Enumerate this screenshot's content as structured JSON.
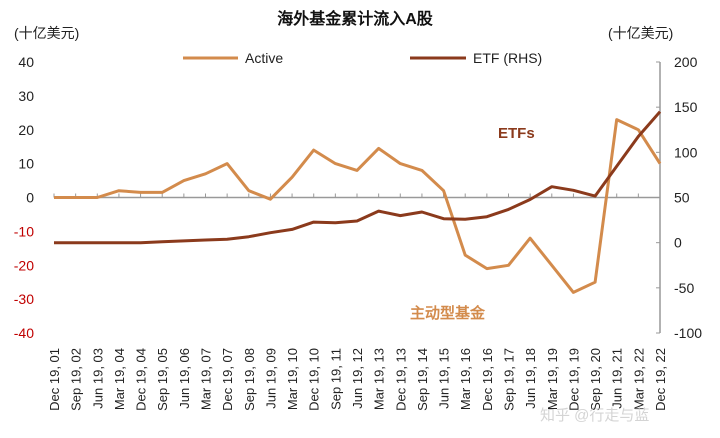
{
  "chart_data": {
    "type": "line",
    "title": "海外基金累计流入A股",
    "ylabel_left": "(十亿美元)",
    "ylabel_right": "(十亿美元)",
    "categories": [
      "Dec 19, 01",
      "Sep 19, 02",
      "Jun 19, 03",
      "Mar 19, 04",
      "Dec 19, 04",
      "Sep 19, 05",
      "Jun 19, 06",
      "Mar 19, 07",
      "Dec 19, 07",
      "Sep 19, 08",
      "Jun 19, 09",
      "Mar 19, 10",
      "Dec 19, 10",
      "Sep 19, 11",
      "Jun 19, 12",
      "Mar 19, 13",
      "Dec 19, 13",
      "Sep 19, 14",
      "Jun 19, 15",
      "Mar 19, 16",
      "Dec 19, 16",
      "Sep 19, 17",
      "Jun 19, 18",
      "Mar 19, 19",
      "Dec 19, 19",
      "Sep 19, 20",
      "Jun 19, 21",
      "Mar 19, 22",
      "Dec 19, 22"
    ],
    "series": [
      {
        "name": "Active",
        "axis": "left",
        "color": "#D38B4C",
        "values": [
          0,
          0,
          0,
          2,
          1.5,
          1.5,
          5,
          7,
          10,
          2,
          -0.5,
          6,
          14,
          10,
          8,
          14.5,
          10,
          8,
          2,
          -17,
          -21,
          -20,
          -12,
          -20,
          -28,
          -25,
          23,
          20,
          10
        ]
      },
      {
        "name": "ETF (RHS)",
        "axis": "right",
        "color": "#8B3A1C",
        "values": [
          0,
          0,
          0,
          0,
          0,
          1,
          2,
          3,
          3.7,
          6.6,
          11,
          14.7,
          22.8,
          22,
          24,
          35,
          30,
          34,
          26.5,
          26,
          28.7,
          36.8,
          47.8,
          62,
          58,
          51.5,
          84.5,
          117.6,
          145
        ]
      }
    ],
    "ylim_left": [
      -40,
      40
    ],
    "yticks_left": [
      "40",
      "30",
      "20",
      "10",
      "0",
      "-10",
      "-20",
      "-30",
      "-40"
    ],
    "ylim_right": [
      -100,
      200
    ],
    "yticks_right": [
      "200",
      "150",
      "100",
      "50",
      "0",
      "-50",
      "-100"
    ],
    "negative_tick_color": "#C00000",
    "legend_placement": "top",
    "annotations": [
      {
        "text": "ETFs",
        "color": "#8B3A1C"
      },
      {
        "text": "主动型基金",
        "color": "#D38B4C"
      }
    ],
    "grid": false
  },
  "watermark": "知乎 @行走与蓝"
}
